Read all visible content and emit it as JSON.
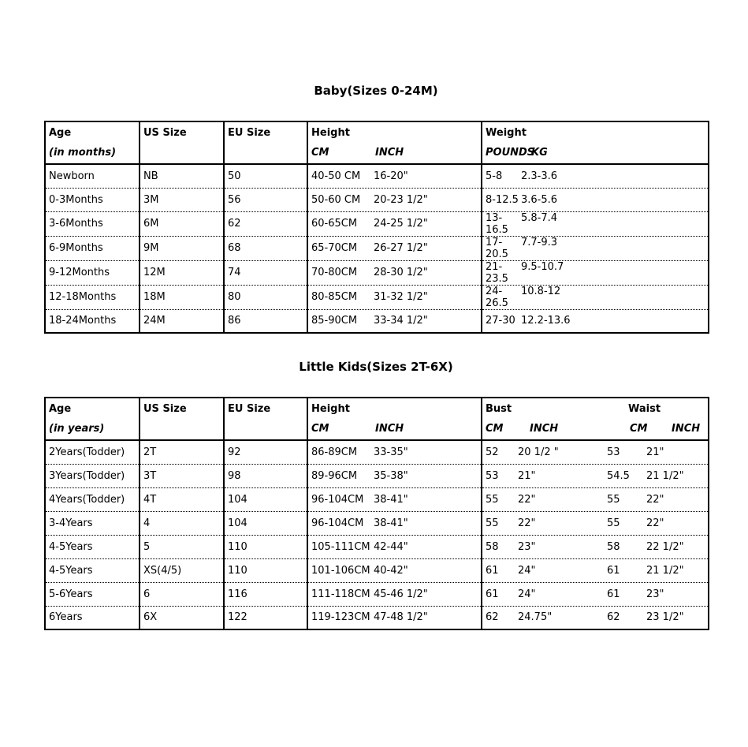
{
  "page": {
    "background": "#ffffff",
    "text_color": "#000000",
    "border_color": "#000000"
  },
  "baby_table": {
    "title": "Baby(Sizes 0-24M)",
    "headers": {
      "age": "Age",
      "age_sub": "(in months)",
      "us_size": "US Size",
      "eu_size": "EU Size",
      "height": "Height",
      "height_cm": "CM",
      "height_inch": "INCH",
      "weight": "Weight",
      "weight_pounds": "POUNDS",
      "weight_kg": "KG"
    },
    "rows": [
      {
        "age": "Newborn",
        "us": "NB",
        "eu": "50",
        "h_cm": "40-50 CM",
        "h_inch": "16-20\"",
        "w_lb": "5-8",
        "w_kg": "2.3-3.6"
      },
      {
        "age": "0-3Months",
        "us": "3M",
        "eu": "56",
        "h_cm": "50-60 CM",
        "h_inch": "20-23 1/2\"",
        "w_lb": "8-12.5",
        "w_kg": "3.6-5.6"
      },
      {
        "age": "3-6Months",
        "us": "6M",
        "eu": "62",
        "h_cm": "60-65CM",
        "h_inch": "24-25 1/2\"",
        "w_lb": "13-16.5",
        "w_kg": "5.8-7.4"
      },
      {
        "age": "6-9Months",
        "us": "9M",
        "eu": "68",
        "h_cm": "65-70CM",
        "h_inch": "26-27 1/2\"",
        "w_lb": "17-20.5",
        "w_kg": "7.7-9.3"
      },
      {
        "age": "9-12Months",
        "us": "12M",
        "eu": "74",
        "h_cm": "70-80CM",
        "h_inch": "28-30 1/2\"",
        "w_lb": "21-23.5",
        "w_kg": "9.5-10.7"
      },
      {
        "age": "12-18Months",
        "us": "18M",
        "eu": "80",
        "h_cm": "80-85CM",
        "h_inch": "31-32 1/2\"",
        "w_lb": "24-26.5",
        "w_kg": "10.8-12"
      },
      {
        "age": "18-24Months",
        "us": "24M",
        "eu": "86",
        "h_cm": "85-90CM",
        "h_inch": "33-34 1/2\"",
        "w_lb": "27-30",
        "w_kg": "12.2-13.6"
      }
    ]
  },
  "kids_table": {
    "title": "Little Kids(Sizes 2T-6X)",
    "headers": {
      "age": "Age",
      "age_sub": "(in years)",
      "us_size": "US Size",
      "eu_size": "EU Size",
      "height": "Height",
      "height_cm": "CM",
      "height_inch": "INCH",
      "bust": "Bust",
      "bust_cm": "CM",
      "bust_inch": "INCH",
      "waist": "Waist",
      "waist_cm": "CM",
      "waist_inch": "INCH"
    },
    "rows": [
      {
        "age": "2Years(Todder)",
        "us": "2T",
        "eu": "92",
        "h_cm": "86-89CM",
        "h_inch": "33-35\"",
        "b_cm": "52",
        "b_inch": "20 1/2 \"",
        "w_cm": "53",
        "w_inch": "21\""
      },
      {
        "age": "3Years(Todder)",
        "us": "3T",
        "eu": "98",
        "h_cm": "89-96CM",
        "h_inch": "35-38\"",
        "b_cm": "53",
        "b_inch": "21\"",
        "w_cm": "54.5",
        "w_inch": "21 1/2\""
      },
      {
        "age": "4Years(Todder)",
        "us": "4T",
        "eu": "104",
        "h_cm": "96-104CM",
        "h_inch": "38-41\"",
        "b_cm": "55",
        "b_inch": "22\"",
        "w_cm": "55",
        "w_inch": "22\""
      },
      {
        "age": "3-4Years",
        "us": "4",
        "eu": "104",
        "h_cm": "96-104CM",
        "h_inch": "38-41\"",
        "b_cm": "55",
        "b_inch": "22\"",
        "w_cm": "55",
        "w_inch": "22\""
      },
      {
        "age": "4-5Years",
        "us": "5",
        "eu": "110",
        "h_cm": "105-111CM",
        "h_inch": "42-44\"",
        "b_cm": "58",
        "b_inch": "23\"",
        "w_cm": "58",
        "w_inch": "22 1/2\""
      },
      {
        "age": "4-5Years",
        "us": "XS(4/5)",
        "eu": "110",
        "h_cm": "101-106CM",
        "h_inch": "40-42\"",
        "b_cm": "61",
        "b_inch": "24\"",
        "w_cm": "61",
        "w_inch": "21 1/2\""
      },
      {
        "age": "5-6Years",
        "us": "6",
        "eu": "116",
        "h_cm": "111-118CM",
        "h_inch": "45-46 1/2\"",
        "b_cm": "61",
        "b_inch": "24\"",
        "w_cm": "61",
        "w_inch": "23\""
      },
      {
        "age": "6Years",
        "us": "6X",
        "eu": "122",
        "h_cm": "119-123CM",
        "h_inch": "47-48 1/2\"",
        "b_cm": "62",
        "b_inch": "24.75\"",
        "w_cm": "62",
        "w_inch": "23 1/2\""
      }
    ]
  }
}
